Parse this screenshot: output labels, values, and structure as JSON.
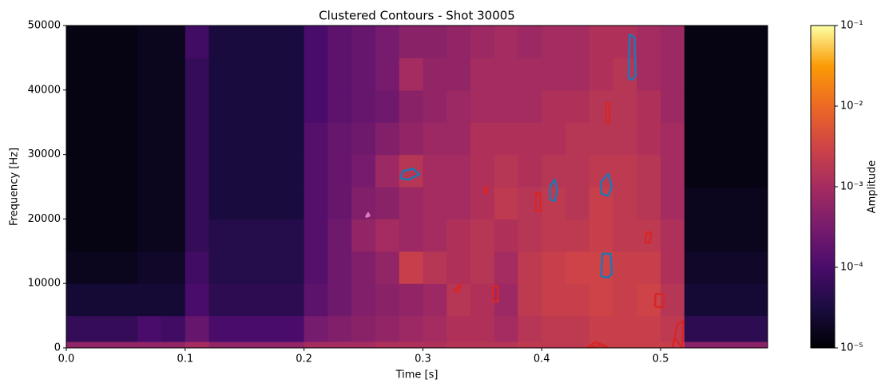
{
  "chart_data": {
    "type": "heatmap",
    "title": "Clustered Contours - Shot 30005",
    "x_label": "Time [s]",
    "y_label": "Frequency [Hz]",
    "xlim": [
      0,
      0.59
    ],
    "ylim": [
      0,
      50000
    ],
    "xticks": [
      {
        "value": 0,
        "label": "0.0"
      },
      0.1,
      0.2,
      0.3,
      0.4,
      0.5
    ],
    "yticks": [
      0,
      10000,
      20000,
      30000,
      40000,
      50000
    ],
    "colormap": "inferno",
    "xbins": [
      0,
      0.02,
      0.04,
      0.06,
      0.08,
      0.1,
      0.12,
      0.14,
      0.16,
      0.18,
      0.2,
      0.22,
      0.24,
      0.26,
      0.28,
      0.3,
      0.32,
      0.34,
      0.36,
      0.38,
      0.4,
      0.42,
      0.44,
      0.46,
      0.48,
      0.5,
      0.52,
      0.54,
      0.56,
      0.58,
      0.59
    ],
    "ybins": [
      0,
      1000,
      5000,
      10000,
      15000,
      20000,
      25000,
      30000,
      35000,
      40000,
      45000,
      50000
    ],
    "z": [
      [
        0.0006,
        6e-05,
        2.5e-05,
        1.6e-05,
        1.3e-05,
        1.3e-05,
        1.3e-05,
        1.3e-05,
        1.3e-05,
        1.3e-05,
        1.3e-05
      ],
      [
        0.0006,
        6e-05,
        2.5e-05,
        1.6e-05,
        1.3e-05,
        1.3e-05,
        1.3e-05,
        1.3e-05,
        1.3e-05,
        1.3e-05,
        1.3e-05
      ],
      [
        0.0006,
        6e-05,
        2.5e-05,
        1.6e-05,
        1.3e-05,
        1.3e-05,
        1.3e-05,
        1.3e-05,
        1.3e-05,
        1.3e-05,
        1.3e-05
      ],
      [
        0.0006,
        0.0001,
        2.5e-05,
        2e-05,
        1.6e-05,
        1.6e-05,
        1.6e-05,
        1.6e-05,
        1.6e-05,
        1.6e-05,
        1.6e-05
      ],
      [
        0.0006,
        8e-05,
        2.5e-05,
        2e-05,
        1.6e-05,
        1.6e-05,
        1.6e-05,
        1.6e-05,
        1.6e-05,
        1.6e-05,
        1.6e-05
      ],
      [
        0.001,
        0.0002,
        0.0001,
        8e-05,
        6e-05,
        6e-05,
        6e-05,
        6e-05,
        6e-05,
        6e-05,
        8e-05
      ],
      [
        0.0006,
        0.0001,
        5e-05,
        4e-05,
        4e-05,
        3e-05,
        3e-05,
        3e-05,
        3e-05,
        3e-05,
        3e-05
      ],
      [
        0.0006,
        0.0001,
        5e-05,
        4e-05,
        4e-05,
        3e-05,
        3e-05,
        3e-05,
        3e-05,
        3e-05,
        3e-05
      ],
      [
        0.0006,
        0.0001,
        5e-05,
        4e-05,
        4e-05,
        3e-05,
        3e-05,
        3e-05,
        3e-05,
        3e-05,
        3e-05
      ],
      [
        0.0006,
        0.0001,
        5e-05,
        4e-05,
        4e-05,
        3e-05,
        3e-05,
        3e-05,
        3e-05,
        3e-05,
        3e-05
      ],
      [
        0.001,
        0.0003,
        0.00016,
        0.00013,
        0.00013,
        0.00013,
        0.00013,
        0.00013,
        0.0001,
        0.0001,
        0.0001
      ],
      [
        0.001,
        0.0004,
        0.00025,
        0.00025,
        0.00025,
        0.0002,
        0.0002,
        0.0002,
        0.00016,
        0.00016,
        0.00016
      ],
      [
        0.001,
        0.0005,
        0.0004,
        0.0004,
        0.0006,
        0.0004,
        0.0003,
        0.00025,
        0.0002,
        0.0002,
        0.0002
      ],
      [
        0.0013,
        0.0006,
        0.0005,
        0.0006,
        0.001,
        0.0005,
        0.0008,
        0.0004,
        0.00025,
        0.0003,
        0.0003
      ],
      [
        0.0013,
        0.0008,
        0.0006,
        0.0025,
        0.0008,
        0.0008,
        0.0016,
        0.0006,
        0.0005,
        0.001,
        0.0005
      ],
      [
        0.0013,
        0.001,
        0.0008,
        0.0016,
        0.001,
        0.001,
        0.001,
        0.0008,
        0.0006,
        0.0006,
        0.0005
      ],
      [
        0.0016,
        0.0013,
        0.0016,
        0.0013,
        0.0013,
        0.001,
        0.001,
        0.0008,
        0.0008,
        0.0006,
        0.0006
      ],
      [
        0.0016,
        0.0013,
        0.0013,
        0.0016,
        0.0016,
        0.0013,
        0.0013,
        0.0013,
        0.001,
        0.001,
        0.0008
      ],
      [
        0.0016,
        0.001,
        0.0008,
        0.001,
        0.0013,
        0.002,
        0.0016,
        0.0013,
        0.001,
        0.001,
        0.001
      ],
      [
        0.002,
        0.0016,
        0.002,
        0.002,
        0.0016,
        0.0016,
        0.0013,
        0.0013,
        0.001,
        0.001,
        0.0008
      ],
      [
        0.002,
        0.002,
        0.0025,
        0.0025,
        0.002,
        0.002,
        0.0016,
        0.0013,
        0.0013,
        0.001,
        0.001
      ],
      [
        0.002,
        0.002,
        0.0025,
        0.003,
        0.002,
        0.0016,
        0.0016,
        0.0016,
        0.0013,
        0.001,
        0.001
      ],
      [
        0.0025,
        0.0025,
        0.003,
        0.003,
        0.0025,
        0.0025,
        0.002,
        0.0016,
        0.0016,
        0.0013,
        0.0013
      ],
      [
        0.0025,
        0.0025,
        0.0025,
        0.0025,
        0.002,
        0.002,
        0.002,
        0.0016,
        0.0016,
        0.0016,
        0.0013
      ],
      [
        0.0025,
        0.0025,
        0.003,
        0.0025,
        0.002,
        0.0016,
        0.0016,
        0.0013,
        0.0013,
        0.001,
        0.001
      ],
      [
        0.0025,
        0.002,
        0.0016,
        0.0013,
        0.0013,
        0.001,
        0.001,
        0.001,
        0.0008,
        0.0008,
        0.0008
      ],
      [
        0.0005,
        5e-05,
        2.5e-05,
        2e-05,
        1.6e-05,
        1.6e-05,
        1.3e-05,
        1.3e-05,
        1.3e-05,
        1.3e-05,
        1.3e-05
      ],
      [
        0.0005,
        5e-05,
        2.5e-05,
        2e-05,
        1.6e-05,
        1.6e-05,
        1.3e-05,
        1.3e-05,
        1.3e-05,
        1.3e-05,
        1.3e-05
      ],
      [
        0.0005,
        5e-05,
        2.5e-05,
        2e-05,
        1.6e-05,
        1.6e-05,
        1.3e-05,
        1.3e-05,
        1.3e-05,
        1.3e-05,
        1.3e-05
      ],
      [
        0.0005,
        5e-05,
        2.5e-05,
        2e-05,
        1.6e-05,
        1.6e-05,
        1.3e-05,
        1.3e-05,
        1.3e-05,
        1.3e-05,
        1.3e-05
      ]
    ],
    "contours": [
      {
        "color": "#1f77b4",
        "x": [
          0.473,
          0.476,
          0.479,
          0.478,
          0.474,
          0.473
        ],
        "y": [
          41800,
          41600,
          42200,
          48200,
          48600,
          41800
        ]
      },
      {
        "color": "#1f77b4",
        "x": [
          0.281,
          0.288,
          0.297,
          0.292,
          0.283,
          0.281
        ],
        "y": [
          26300,
          26100,
          26900,
          27800,
          27400,
          26300
        ]
      },
      {
        "color": "#1f77b4",
        "x": [
          0.407,
          0.411,
          0.413,
          0.411,
          0.407,
          0.407
        ],
        "y": [
          23000,
          22800,
          24500,
          26100,
          25000,
          23000
        ]
      },
      {
        "color": "#1f77b4",
        "x": [
          0.45,
          0.456,
          0.459,
          0.456,
          0.45,
          0.45
        ],
        "y": [
          23900,
          23600,
          25000,
          27000,
          25800,
          23900
        ]
      },
      {
        "color": "#1f77b4",
        "x": [
          0.45,
          0.456,
          0.459,
          0.458,
          0.451,
          0.45
        ],
        "y": [
          11100,
          10900,
          11500,
          14600,
          14600,
          11100
        ]
      },
      {
        "color": "#d62728",
        "x": [
          0.351,
          0.354,
          0.354,
          0.351
        ],
        "y": [
          24300,
          23900,
          25100,
          24300
        ]
      },
      {
        "color": "#d62728",
        "x": [
          0.395,
          0.399,
          0.399,
          0.395,
          0.395
        ],
        "y": [
          21200,
          21200,
          24000,
          24000,
          21200
        ]
      },
      {
        "color": "#d62728",
        "x": [
          0.454,
          0.457,
          0.457,
          0.454,
          0.454
        ],
        "y": [
          34800,
          34800,
          37900,
          37900,
          34800
        ]
      },
      {
        "color": "#d62728",
        "x": [
          0.487,
          0.491,
          0.492,
          0.488,
          0.487
        ],
        "y": [
          16300,
          16300,
          17900,
          17900,
          16300
        ]
      },
      {
        "color": "#d62728",
        "x": [
          0.326,
          0.33,
          0.332,
          0.326
        ],
        "y": [
          8800,
          8700,
          9900,
          8800
        ]
      },
      {
        "color": "#d62728",
        "x": [
          0.359,
          0.363,
          0.363,
          0.359,
          0.359
        ],
        "y": [
          7200,
          7200,
          9600,
          9600,
          7200
        ]
      },
      {
        "color": "#d62728",
        "x": [
          0.495,
          0.502,
          0.503,
          0.496,
          0.495
        ],
        "y": [
          6400,
          6300,
          8300,
          8400,
          6400
        ]
      },
      {
        "color": "#d62728",
        "x": [
          0.51,
          0.514,
          0.519,
          0.518,
          0.512,
          0.51
        ],
        "y": [
          0,
          3600,
          4200,
          0,
          1500,
          0
        ]
      },
      {
        "color": "#d62728",
        "x": [
          0.438,
          0.445,
          0.455,
          0.448,
          0.438
        ],
        "y": [
          0,
          900,
          200,
          400,
          0
        ]
      },
      {
        "color": "#e377c2",
        "x": [
          0.252,
          0.255,
          0.254,
          0.252
        ],
        "y": [
          20300,
          20500,
          20900,
          20300
        ]
      }
    ],
    "colorbar": {
      "label": "Amplitude",
      "scale": "log",
      "lim": [
        1e-05,
        0.1
      ],
      "ticks": [
        {
          "value": 1e-05,
          "label": "10⁻⁵"
        },
        {
          "value": 0.0001,
          "label": "10⁻⁴"
        },
        {
          "value": 0.001,
          "label": "10⁻³"
        },
        {
          "value": 0.01,
          "label": "10⁻²"
        },
        {
          "value": 0.1,
          "label": "10⁻¹"
        }
      ]
    }
  }
}
